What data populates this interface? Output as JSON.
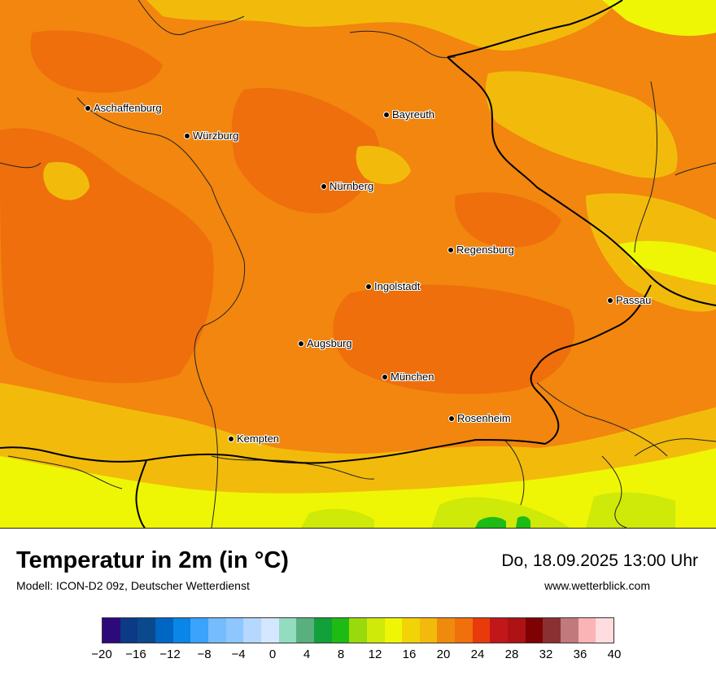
{
  "map": {
    "cities": [
      {
        "name": "Aschaffenburg"
      },
      {
        "name": "Würzburg"
      },
      {
        "name": "Bayreuth"
      },
      {
        "name": "Nürnberg"
      },
      {
        "name": "Regensburg"
      },
      {
        "name": "Ingolstadt"
      },
      {
        "name": "Passau"
      },
      {
        "name": "Augsburg"
      },
      {
        "name": "München"
      },
      {
        "name": "Rosenheim"
      },
      {
        "name": "Kempten"
      }
    ]
  },
  "footer": {
    "title": "Temperatur in 2m (in °C)",
    "subtitle": "Modell: ICON-D2 09z, Deutscher Wetterdienst",
    "datetime": "Do, 18.09.2025 13:00 Uhr",
    "website": "www.wetterblick.com"
  },
  "legend": {
    "colors": [
      "#2d0a7a",
      "#0c3a86",
      "#0a4a8c",
      "#0066c4",
      "#0a85e8",
      "#3ba3fb",
      "#74bcfd",
      "#8ec7fd",
      "#b4d8fe",
      "#d4e7fe",
      "#92dcbf",
      "#5aaf7e",
      "#11a03a",
      "#1ebb14",
      "#9ad90b",
      "#cfe908",
      "#eef605",
      "#f2d308",
      "#f2bb0b",
      "#f08a0d",
      "#f0700c",
      "#e93a0c",
      "#c2171a",
      "#ad1214",
      "#7e0104",
      "#8b3032",
      "#c1797b",
      "#fab4b5",
      "#ffdcdd"
    ],
    "ticks": [
      "−20",
      "−16",
      "−12",
      "−8",
      "−4",
      "0",
      "4",
      "8",
      "12",
      "16",
      "20",
      "24",
      "28",
      "32",
      "36",
      "40"
    ]
  }
}
